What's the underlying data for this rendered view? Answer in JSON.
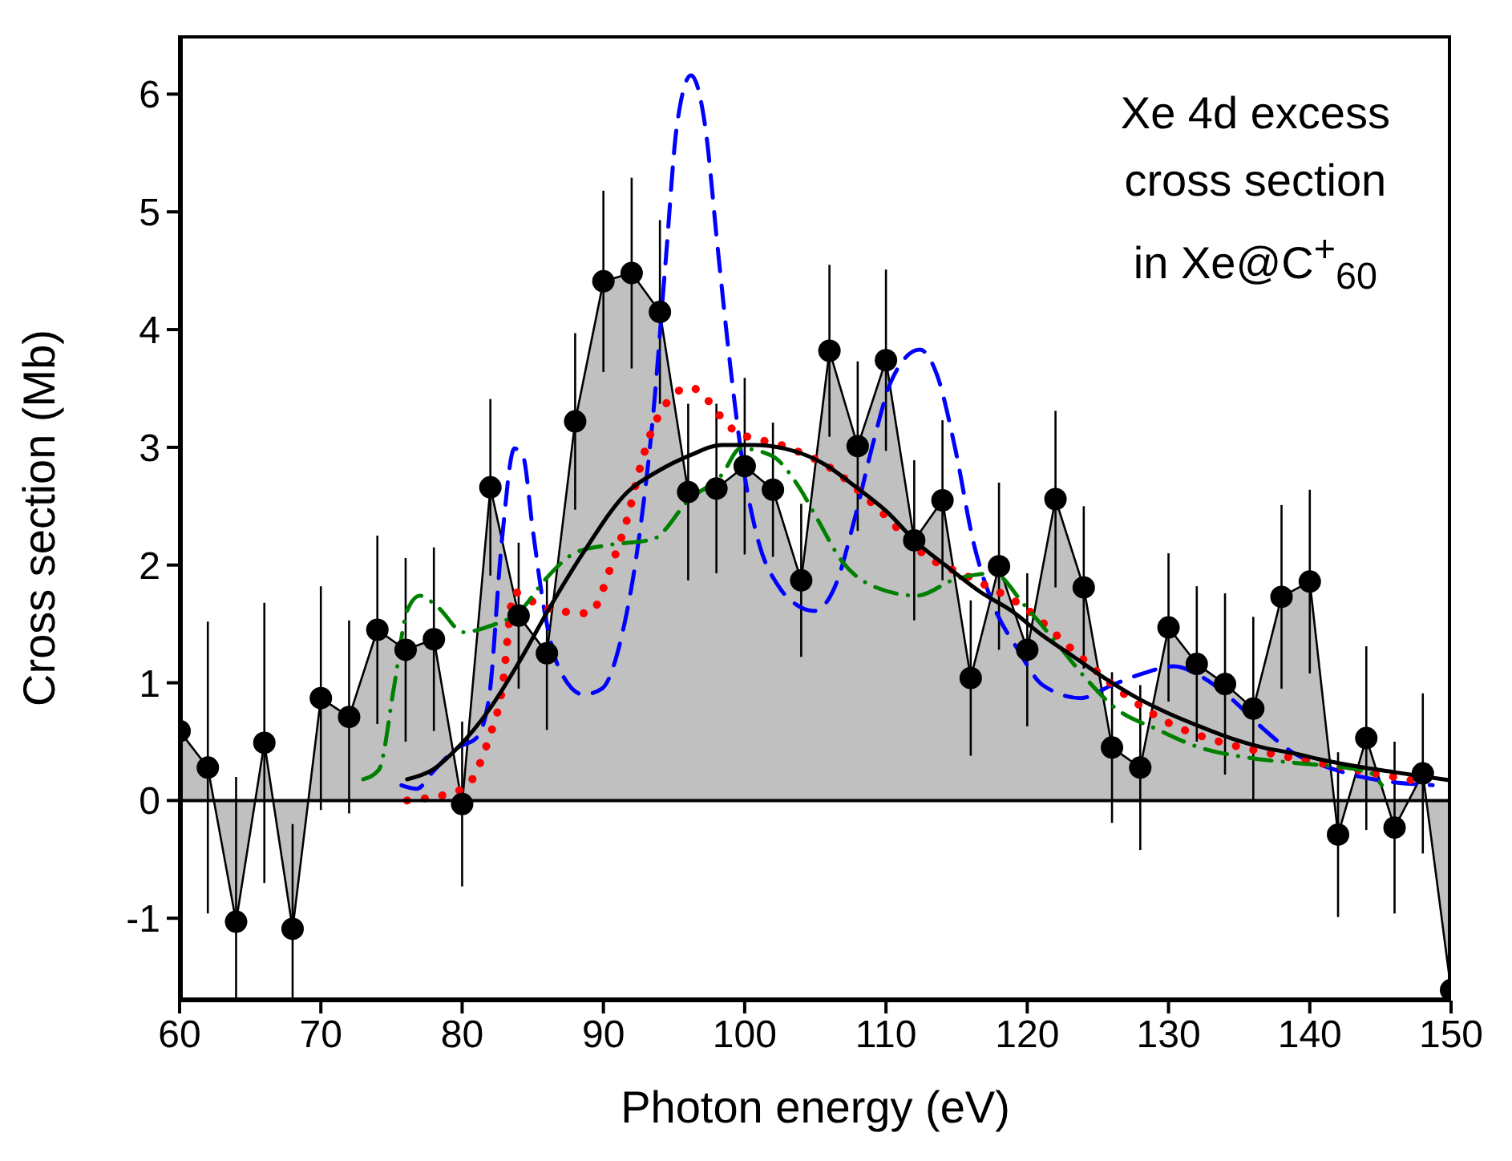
{
  "chart_data": {
    "type": "line",
    "xlabel": "Photon energy (eV)",
    "ylabel": "Cross section (Mb)",
    "annotations": [
      "Xe 4d excess\ncross section\nin Xe@C$^{+}$$_{60}$"
    ],
    "xlim": [
      60,
      150
    ],
    "xticks": [
      60,
      70,
      80,
      90,
      100,
      110,
      120,
      130,
      140,
      150
    ],
    "ylim": [
      -1.7,
      6.5
    ],
    "yticks": [
      -1,
      0,
      1,
      2,
      3,
      4,
      5,
      6
    ],
    "ref_lines": [
      {
        "axis": "y",
        "value": 0,
        "color": "#000000"
      }
    ],
    "series": [
      {
        "type": "area",
        "color": "#000000",
        "marker": "circle",
        "line_style": "solid",
        "x": [
          60,
          62,
          64,
          66,
          68,
          70,
          72,
          74,
          76,
          78,
          80,
          82,
          84,
          86,
          88,
          90,
          92,
          94,
          96,
          98,
          100,
          102,
          104,
          106,
          108,
          110,
          112,
          114,
          116,
          118,
          120,
          122,
          124,
          126,
          128,
          130,
          132,
          134,
          136,
          138,
          140,
          142,
          144,
          146,
          148,
          150
        ],
        "values": [
          0.59,
          0.28,
          -1.03,
          0.49,
          -1.09,
          0.87,
          0.71,
          1.45,
          1.28,
          1.37,
          -0.03,
          2.66,
          1.57,
          1.25,
          3.22,
          4.41,
          4.48,
          4.15,
          2.62,
          2.65,
          2.84,
          2.64,
          1.87,
          3.82,
          3.01,
          3.74,
          2.21,
          2.55,
          1.04,
          1.99,
          1.28,
          2.56,
          1.81,
          0.45,
          0.28,
          1.47,
          1.16,
          0.99,
          0.78,
          1.73,
          1.86,
          -0.29,
          0.53,
          -0.23,
          0.23,
          -1.61
        ],
        "errors": [
          1.42,
          1.24,
          [
            -1.7,
            0.2
          ],
          1.19,
          [
            -1.7,
            -0.2
          ],
          0.95,
          0.82,
          0.8,
          0.78,
          0.78,
          0.7,
          0.75,
          0.62,
          0.65,
          0.75,
          0.77,
          0.81,
          0.78,
          0.75,
          0.72,
          0.75,
          0.57,
          0.65,
          0.73,
          0.72,
          0.77,
          0.68,
          0.68,
          0.66,
          0.71,
          0.65,
          0.75,
          0.69,
          0.64,
          0.7,
          0.63,
          0.66,
          0.77,
          0.78,
          0.78,
          0.78,
          0.7,
          0.78,
          0.73,
          0.68,
          null
        ]
      },
      {
        "type": "line",
        "color": "#0000ff",
        "marker": "none",
        "line_style": "dashed",
        "x": [
          75.7,
          76.8,
          77.9,
          79.7,
          81,
          81.9,
          82.8,
          83.7,
          84.3,
          85,
          85.9,
          86.8,
          88.6,
          89.9,
          91.2,
          92.6,
          93.5,
          94.4,
          95.2,
          96.2,
          97.2,
          98.1,
          99,
          99.9,
          101,
          102.4,
          103.7,
          104.9,
          106.4,
          107.8,
          109.1,
          110.4,
          112.4,
          113.6,
          114.9,
          116.2,
          117.6,
          119.3,
          121.1,
          123.8,
          126,
          128.2,
          130.4,
          132.2,
          134.4,
          136.7,
          138.9,
          141.1,
          143.3,
          145.6,
          148.7
        ],
        "values": [
          0.13,
          0.1,
          0.24,
          0.45,
          0.53,
          0.87,
          2.19,
          2.99,
          2.93,
          2.3,
          1.56,
          1.14,
          0.9,
          0.95,
          1.35,
          2.3,
          3.25,
          4.57,
          5.73,
          6.16,
          5.73,
          4.68,
          3.67,
          2.83,
          2.19,
          1.82,
          1.66,
          1.61,
          1.82,
          2.4,
          3.04,
          3.57,
          3.83,
          3.62,
          2.99,
          2.19,
          1.66,
          1.29,
          0.98,
          0.87,
          0.98,
          1.08,
          1.14,
          1.06,
          0.87,
          0.61,
          0.4,
          0.29,
          0.21,
          0.16,
          0.13
        ]
      },
      {
        "type": "line",
        "color": "#ff0000",
        "marker": "none",
        "line_style": "dotted",
        "x": [
          76.1,
          80.1,
          81.9,
          82.8,
          83.7,
          84.6,
          85.7,
          89,
          90.6,
          91.7,
          92.6,
          93.7,
          96.1,
          99.3,
          102.8,
          106,
          109.6,
          112.7,
          116.2,
          119.8,
          123.3,
          126.9,
          130,
          133.6,
          137.2,
          140.7,
          144.2,
          147.8
        ],
        "values": [
          0,
          0.1,
          0.53,
          0.92,
          1.77,
          1.72,
          1.64,
          1.59,
          2.01,
          2.4,
          2.83,
          3.22,
          3.51,
          3.14,
          3.01,
          2.83,
          2.46,
          2.09,
          1.88,
          1.64,
          1.27,
          0.9,
          0.66,
          0.5,
          0.4,
          0.32,
          0.24,
          0.16
        ]
      },
      {
        "type": "line",
        "color": "#008000",
        "marker": "none",
        "line_style": "dashdot",
        "x": [
          73,
          74.1,
          75.2,
          76.1,
          77,
          78.3,
          80.1,
          81.9,
          84.1,
          85.9,
          88.1,
          90.4,
          93.5,
          96.1,
          98.4,
          99.7,
          101.9,
          103.8,
          105.1,
          106.9,
          109.1,
          112.2,
          114.9,
          117.6,
          119.8,
          122,
          124.2,
          126.4,
          129.1,
          132.2,
          135.3,
          138.9,
          141.6,
          144.2,
          145.1
        ],
        "values": [
          0.18,
          0.26,
          0.98,
          1.61,
          1.74,
          1.64,
          1.43,
          1.48,
          1.61,
          1.88,
          2.11,
          2.17,
          2.22,
          2.56,
          2.77,
          2.99,
          2.93,
          2.67,
          2.4,
          2.03,
          1.82,
          1.74,
          1.88,
          1.93,
          1.66,
          1.35,
          1.03,
          0.77,
          0.61,
          0.45,
          0.37,
          0.32,
          0.29,
          0.24,
          0.13
        ]
      },
      {
        "type": "line",
        "color": "#000000",
        "marker": "none",
        "line_style": "solid",
        "x": [
          76.1,
          77.9,
          79.7,
          81.9,
          84.1,
          86.3,
          88.6,
          91.7,
          93.9,
          96.1,
          98.4,
          100.6,
          102.8,
          105.6,
          107.8,
          110,
          112.2,
          114.4,
          116.7,
          118.9,
          121.1,
          123.3,
          125.6,
          127.8,
          130,
          132.2,
          134.4,
          136.7,
          138.9,
          141.1,
          143.3,
          146,
          150
        ],
        "values": [
          0.18,
          0.26,
          0.45,
          0.77,
          1.19,
          1.66,
          2.11,
          2.62,
          2.8,
          2.93,
          3.02,
          3.02,
          2.99,
          2.86,
          2.67,
          2.46,
          2.19,
          1.98,
          1.77,
          1.61,
          1.4,
          1.22,
          1.03,
          0.87,
          0.74,
          0.63,
          0.53,
          0.45,
          0.4,
          0.34,
          0.29,
          0.24,
          0.17
        ]
      }
    ]
  }
}
